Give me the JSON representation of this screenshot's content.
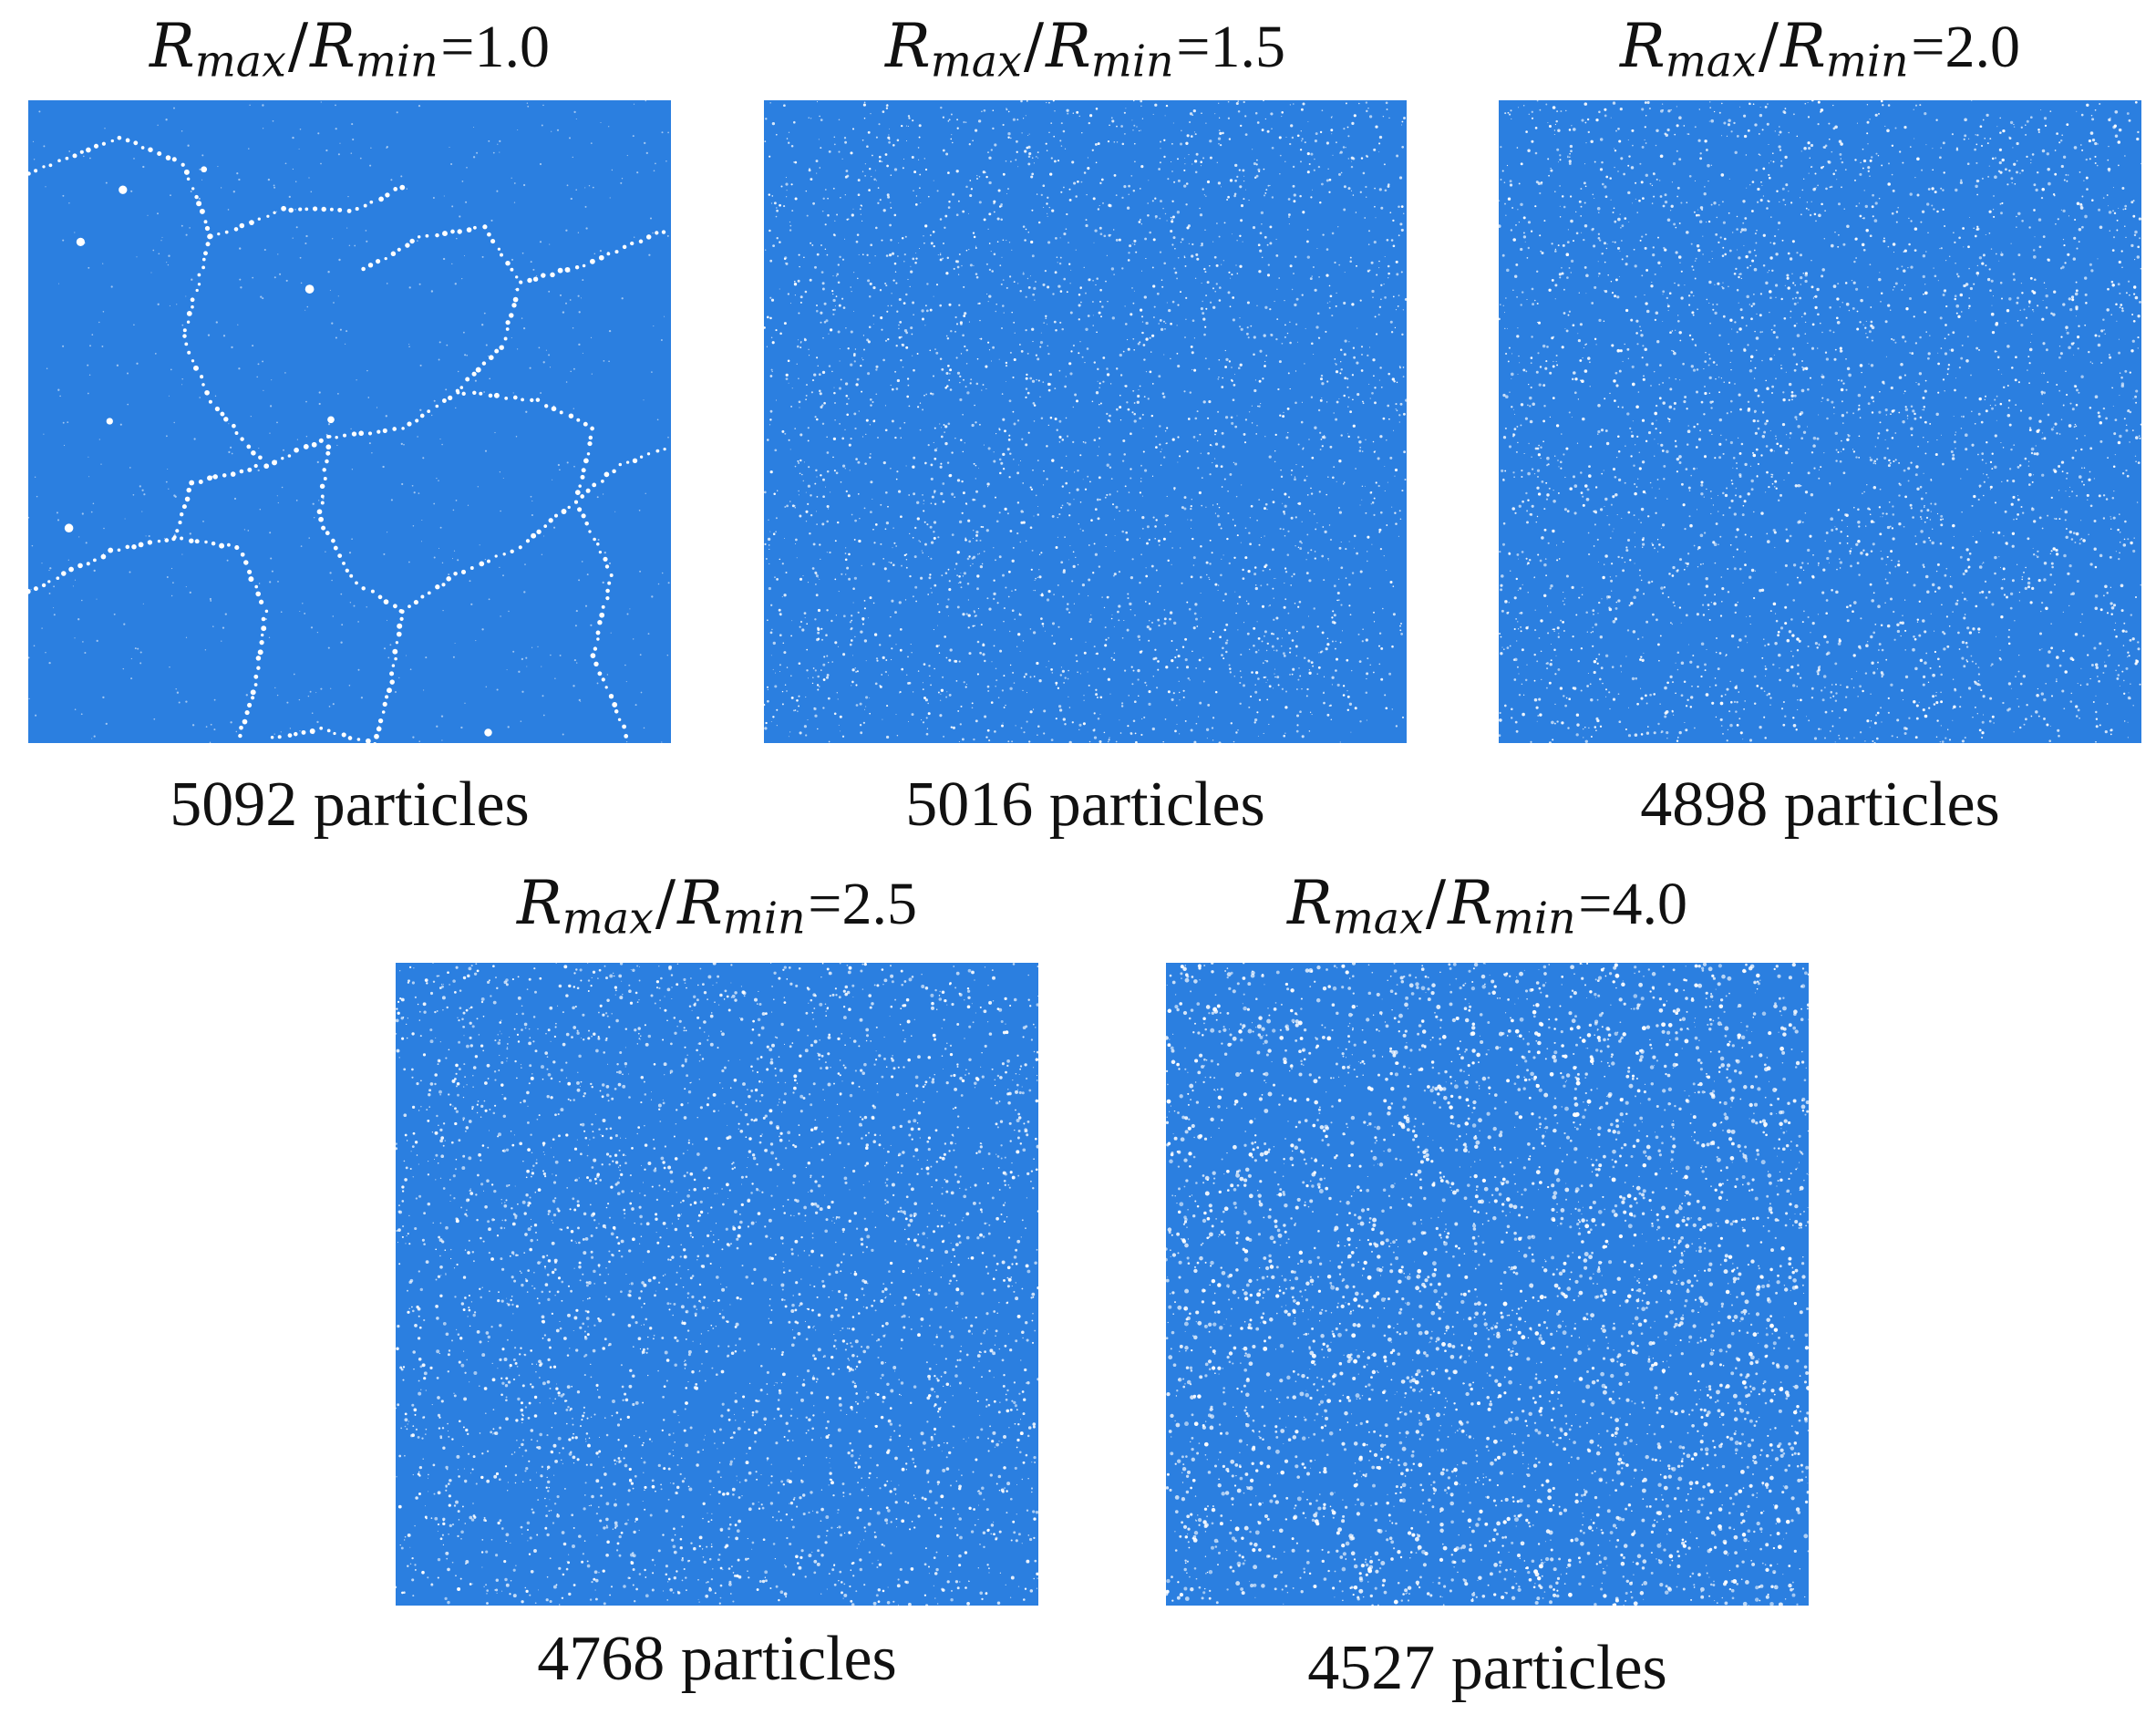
{
  "figure": {
    "panels": [
      {
        "title": {
          "ratio_symbol": "R",
          "max_subscript": "max",
          "slash": "/",
          "min_subscript": "min",
          "equals": "=",
          "value": "1.0"
        },
        "caption": "5092 particles",
        "particle_count": 5092,
        "ratio": 1.0,
        "colors": {
          "particle": "#2b7fe0",
          "gap": "#ffffff"
        }
      },
      {
        "title": {
          "ratio_symbol": "R",
          "max_subscript": "max",
          "slash": "/",
          "min_subscript": "min",
          "equals": "=",
          "value": "1.5"
        },
        "caption": "5016 particles",
        "particle_count": 5016,
        "ratio": 1.5,
        "colors": {
          "particle": "#2b7fe0",
          "gap": "#ffffff"
        }
      },
      {
        "title": {
          "ratio_symbol": "R",
          "max_subscript": "max",
          "slash": "/",
          "min_subscript": "min",
          "equals": "=",
          "value": "2.0"
        },
        "caption": "4898 particles",
        "particle_count": 4898,
        "ratio": 2.0,
        "colors": {
          "particle": "#2b7fe0",
          "gap": "#ffffff"
        }
      },
      {
        "title": {
          "ratio_symbol": "R",
          "max_subscript": "max",
          "slash": "/",
          "min_subscript": "min",
          "equals": "=",
          "value": "2.5"
        },
        "caption": "4768 particles",
        "particle_count": 4768,
        "ratio": 2.5,
        "colors": {
          "particle": "#2b7fe0",
          "gap": "#ffffff"
        }
      },
      {
        "title": {
          "ratio_symbol": "R",
          "max_subscript": "max",
          "slash": "/",
          "min_subscript": "min",
          "equals": "=",
          "value": "4.0"
        },
        "caption": "4527 particles",
        "particle_count": 4527,
        "ratio": 4.0,
        "colors": {
          "particle": "#2b7fe0",
          "gap": "#ffffff"
        }
      }
    ]
  }
}
